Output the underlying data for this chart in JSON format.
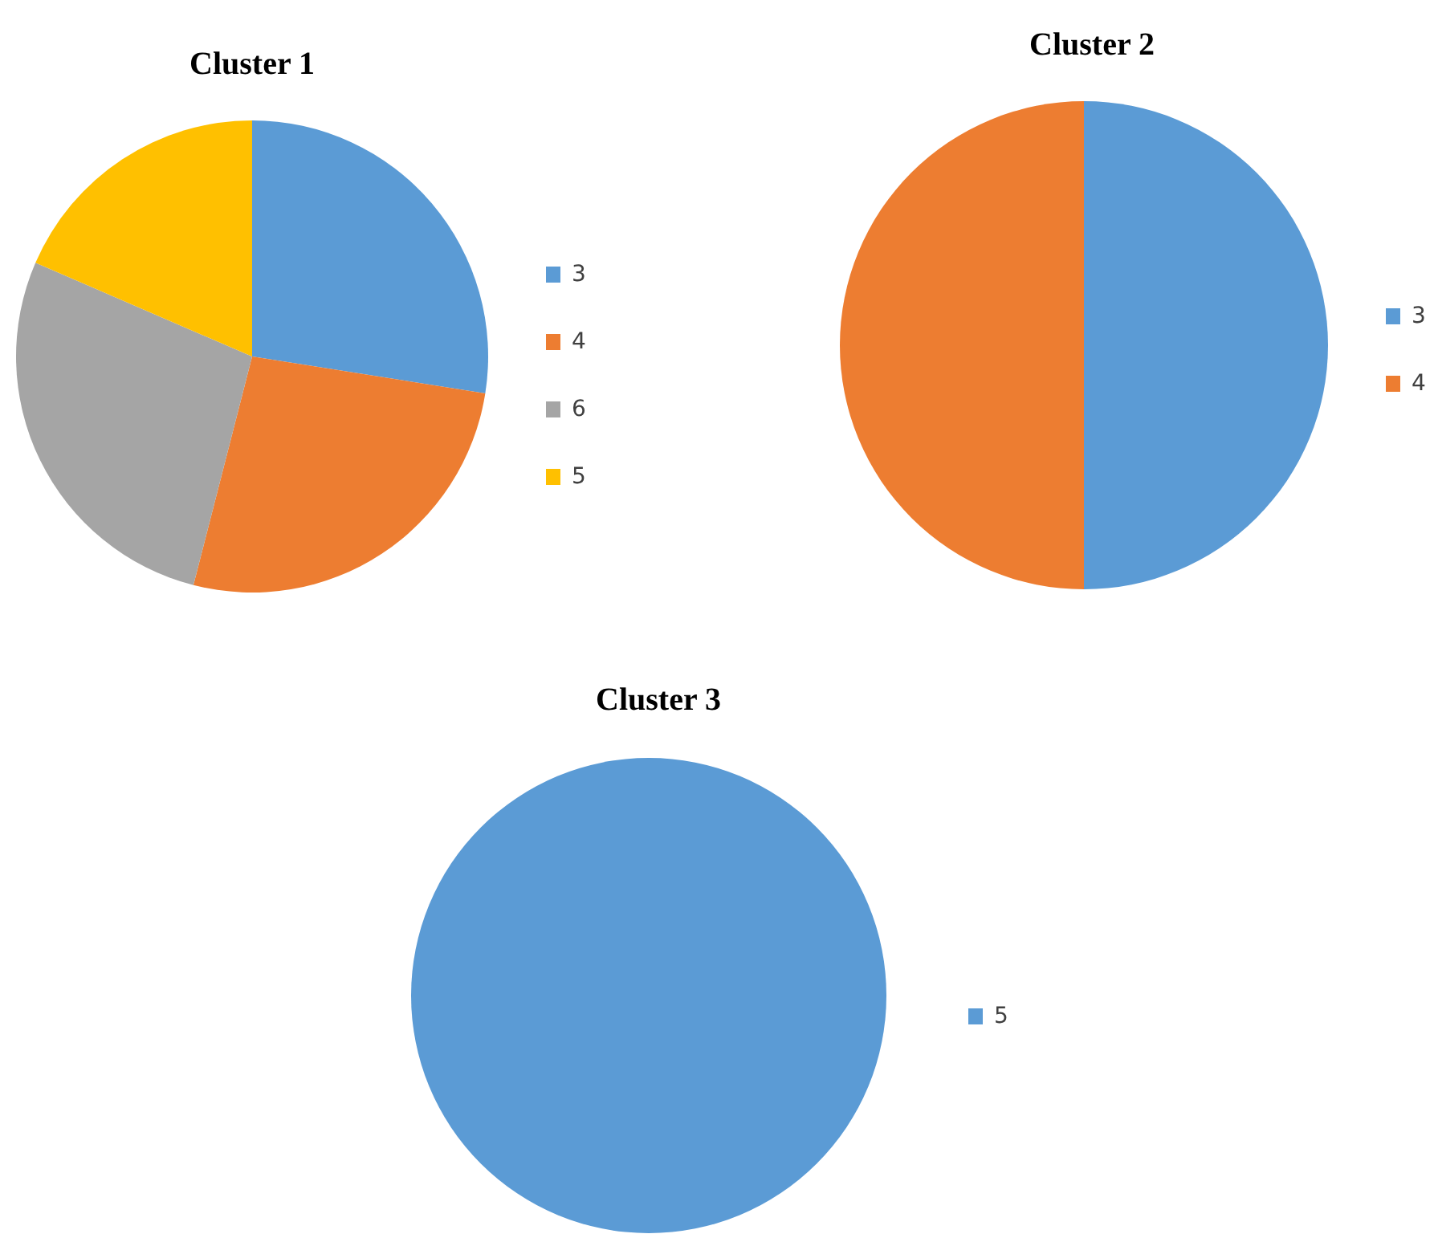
{
  "chart_data": [
    {
      "type": "pie",
      "title": "Cluster 1",
      "categories": [
        "3",
        "4",
        "6",
        "5"
      ],
      "values": [
        27.5,
        26.5,
        27.5,
        18.5
      ],
      "colors": [
        "#5b9bd5",
        "#ed7d31",
        "#a5a5a5",
        "#ffc000"
      ],
      "legend": "right"
    },
    {
      "type": "pie",
      "title": "Cluster 2",
      "categories": [
        "3",
        "4"
      ],
      "values": [
        50,
        50
      ],
      "colors": [
        "#5b9bd5",
        "#ed7d31"
      ],
      "legend": "right"
    },
    {
      "type": "pie",
      "title": "Cluster 3",
      "categories": [
        "5"
      ],
      "values": [
        100
      ],
      "colors": [
        "#5b9bd5"
      ],
      "legend": "right"
    }
  ]
}
